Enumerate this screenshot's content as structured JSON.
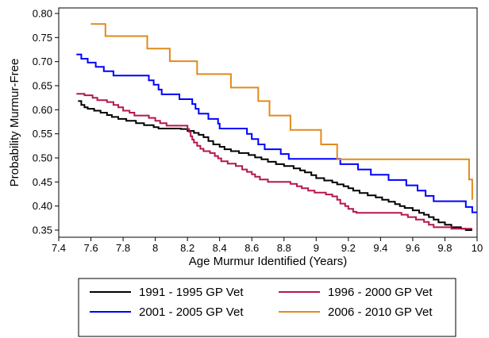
{
  "chart_data": {
    "type": "line",
    "step": true,
    "xlabel": "Age Murmur Identified (Years)",
    "ylabel": "Probability Murmur-Free",
    "xlim": [
      7.4,
      10
    ],
    "ylim": [
      0.35,
      0.8
    ],
    "xticks": [
      "7.4",
      "7.6",
      "7.8",
      "8",
      "8.2",
      "8.4",
      "8.6",
      "8.8",
      "9",
      "9.2",
      "9.4",
      "9.6",
      "9.8",
      "10"
    ],
    "yticks": [
      "0.35",
      "0.40",
      "0.45",
      "0.50",
      "0.55",
      "0.60",
      "0.65",
      "0.70",
      "0.75",
      "0.80"
    ],
    "legend_position": "bottom",
    "series": [
      {
        "name": "1991 - 1995 GP Vet",
        "color": "#000000",
        "points": [
          [
            7.52,
            0.618
          ],
          [
            7.54,
            0.61
          ],
          [
            7.56,
            0.605
          ],
          [
            7.58,
            0.602
          ],
          [
            7.62,
            0.598
          ],
          [
            7.66,
            0.594
          ],
          [
            7.7,
            0.589
          ],
          [
            7.73,
            0.585
          ],
          [
            7.77,
            0.581
          ],
          [
            7.82,
            0.577
          ],
          [
            7.88,
            0.572
          ],
          [
            7.93,
            0.568
          ],
          [
            7.99,
            0.564
          ],
          [
            8.02,
            0.561
          ],
          [
            8.16,
            0.56
          ],
          [
            8.2,
            0.556
          ],
          [
            8.24,
            0.552
          ],
          [
            8.27,
            0.548
          ],
          [
            8.3,
            0.543
          ],
          [
            8.33,
            0.535
          ],
          [
            8.36,
            0.528
          ],
          [
            8.4,
            0.523
          ],
          [
            8.43,
            0.518
          ],
          [
            8.47,
            0.514
          ],
          [
            8.52,
            0.51
          ],
          [
            8.58,
            0.506
          ],
          [
            8.62,
            0.501
          ],
          [
            8.66,
            0.497
          ],
          [
            8.7,
            0.492
          ],
          [
            8.75,
            0.487
          ],
          [
            8.8,
            0.483
          ],
          [
            8.86,
            0.478
          ],
          [
            8.9,
            0.474
          ],
          [
            8.93,
            0.47
          ],
          [
            8.97,
            0.464
          ],
          [
            9.0,
            0.458
          ],
          [
            9.05,
            0.453
          ],
          [
            9.1,
            0.449
          ],
          [
            9.13,
            0.445
          ],
          [
            9.17,
            0.441
          ],
          [
            9.2,
            0.437
          ],
          [
            9.23,
            0.432
          ],
          [
            9.27,
            0.427
          ],
          [
            9.32,
            0.422
          ],
          [
            9.37,
            0.418
          ],
          [
            9.41,
            0.413
          ],
          [
            9.45,
            0.409
          ],
          [
            9.49,
            0.404
          ],
          [
            9.52,
            0.4
          ],
          [
            9.55,
            0.396
          ],
          [
            9.6,
            0.391
          ],
          [
            9.64,
            0.386
          ],
          [
            9.67,
            0.382
          ],
          [
            9.7,
            0.377
          ],
          [
            9.73,
            0.372
          ],
          [
            9.76,
            0.366
          ],
          [
            9.8,
            0.361
          ],
          [
            9.84,
            0.356
          ],
          [
            9.9,
            0.353
          ],
          [
            9.93,
            0.35
          ],
          [
            9.97,
            0.35
          ]
        ]
      },
      {
        "name": "1996 - 2000 GP Vet",
        "color": "#b5174b",
        "points": [
          [
            7.51,
            0.633
          ],
          [
            7.56,
            0.63
          ],
          [
            7.61,
            0.625
          ],
          [
            7.64,
            0.62
          ],
          [
            7.7,
            0.616
          ],
          [
            7.74,
            0.61
          ],
          [
            7.77,
            0.605
          ],
          [
            7.8,
            0.598
          ],
          [
            7.84,
            0.594
          ],
          [
            7.87,
            0.588
          ],
          [
            7.96,
            0.583
          ],
          [
            8.0,
            0.577
          ],
          [
            8.03,
            0.572
          ],
          [
            8.07,
            0.567
          ],
          [
            8.2,
            0.56
          ],
          [
            8.21,
            0.554
          ],
          [
            8.22,
            0.545
          ],
          [
            8.23,
            0.538
          ],
          [
            8.24,
            0.532
          ],
          [
            8.26,
            0.525
          ],
          [
            8.28,
            0.519
          ],
          [
            8.3,
            0.514
          ],
          [
            8.34,
            0.51
          ],
          [
            8.37,
            0.504
          ],
          [
            8.39,
            0.499
          ],
          [
            8.41,
            0.493
          ],
          [
            8.45,
            0.488
          ],
          [
            8.5,
            0.483
          ],
          [
            8.54,
            0.476
          ],
          [
            8.57,
            0.471
          ],
          [
            8.6,
            0.466
          ],
          [
            8.62,
            0.461
          ],
          [
            8.65,
            0.455
          ],
          [
            8.7,
            0.45
          ],
          [
            8.84,
            0.446
          ],
          [
            8.88,
            0.441
          ],
          [
            8.91,
            0.437
          ],
          [
            8.95,
            0.432
          ],
          [
            8.99,
            0.428
          ],
          [
            9.06,
            0.424
          ],
          [
            9.1,
            0.42
          ],
          [
            9.13,
            0.413
          ],
          [
            9.15,
            0.405
          ],
          [
            9.18,
            0.4
          ],
          [
            9.2,
            0.394
          ],
          [
            9.23,
            0.388
          ],
          [
            9.25,
            0.386
          ],
          [
            9.53,
            0.382
          ],
          [
            9.57,
            0.377
          ],
          [
            9.62,
            0.372
          ],
          [
            9.67,
            0.367
          ],
          [
            9.7,
            0.361
          ],
          [
            9.73,
            0.356
          ],
          [
            9.84,
            0.353
          ],
          [
            9.97,
            0.353
          ]
        ]
      },
      {
        "name": "2001 - 2005 GP Vet",
        "color": "#0000ff",
        "points": [
          [
            7.51,
            0.715
          ],
          [
            7.54,
            0.706
          ],
          [
            7.58,
            0.698
          ],
          [
            7.63,
            0.689
          ],
          [
            7.68,
            0.68
          ],
          [
            7.74,
            0.671
          ],
          [
            7.96,
            0.661
          ],
          [
            7.99,
            0.652
          ],
          [
            8.02,
            0.642
          ],
          [
            8.04,
            0.632
          ],
          [
            8.15,
            0.622
          ],
          [
            8.23,
            0.612
          ],
          [
            8.25,
            0.602
          ],
          [
            8.27,
            0.592
          ],
          [
            8.33,
            0.581
          ],
          [
            8.39,
            0.571
          ],
          [
            8.4,
            0.561
          ],
          [
            8.57,
            0.55
          ],
          [
            8.6,
            0.539
          ],
          [
            8.64,
            0.528
          ],
          [
            8.68,
            0.518
          ],
          [
            8.78,
            0.508
          ],
          [
            8.83,
            0.498
          ],
          [
            9.15,
            0.487
          ],
          [
            9.26,
            0.476
          ],
          [
            9.34,
            0.465
          ],
          [
            9.45,
            0.454
          ],
          [
            9.56,
            0.443
          ],
          [
            9.63,
            0.432
          ],
          [
            9.68,
            0.421
          ],
          [
            9.73,
            0.41
          ],
          [
            9.93,
            0.398
          ],
          [
            9.97,
            0.387
          ],
          [
            10.0,
            0.387
          ]
        ]
      },
      {
        "name": "2006 - 2010 GP Vet",
        "color": "#e08a1e",
        "points": [
          [
            7.6,
            0.778
          ],
          [
            7.69,
            0.753
          ],
          [
            7.95,
            0.727
          ],
          [
            8.09,
            0.701
          ],
          [
            8.26,
            0.674
          ],
          [
            8.47,
            0.646
          ],
          [
            8.64,
            0.618
          ],
          [
            8.71,
            0.588
          ],
          [
            8.84,
            0.558
          ],
          [
            9.03,
            0.528
          ],
          [
            9.13,
            0.497
          ],
          [
            9.95,
            0.455
          ],
          [
            9.97,
            0.413
          ]
        ]
      }
    ]
  }
}
